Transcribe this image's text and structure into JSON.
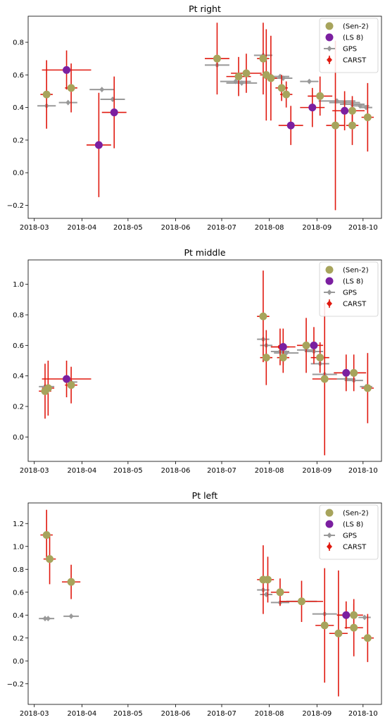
{
  "chart_data": [
    {
      "type": "scatter",
      "title": "Pt right",
      "xlabel": "",
      "ylabel": "",
      "xlim": [
        "2018-02-25",
        "2018-10-13"
      ],
      "ylim": [
        -0.28,
        0.96
      ],
      "xticks": [
        "2018-03",
        "2018-04",
        "2018-05",
        "2018-06",
        "2018-07",
        "2018-08",
        "2018-09",
        "2018-10"
      ],
      "yticks": [
        -0.2,
        0.0,
        0.2,
        0.4,
        0.6,
        0.8
      ],
      "ytick_labels": [
        "−0.2",
        "0.0",
        "0.2",
        "0.4",
        "0.6",
        "0.8"
      ],
      "legend": {
        "placement": "top-right",
        "entries": [
          "(Sen-2)",
          "(LS 8)",
          "GPS",
          "CARST"
        ]
      },
      "series": [
        {
          "name": "GPS",
          "color": "#999999",
          "points": [
            {
              "x": "2018-03-09",
              "y": 0.41,
              "xerr": 6
            },
            {
              "x": "2018-03-23",
              "y": 0.43,
              "xerr": 6
            },
            {
              "x": "2018-04-14",
              "y": 0.51,
              "xerr": 8
            },
            {
              "x": "2018-04-21",
              "y": 0.45,
              "xerr": 8
            },
            {
              "x": "2018-06-28",
              "y": 0.66,
              "xerr": 8
            },
            {
              "x": "2018-07-10",
              "y": 0.56,
              "xerr": 10
            },
            {
              "x": "2018-07-14",
              "y": 0.55,
              "xerr": 10
            },
            {
              "x": "2018-07-28",
              "y": 0.72,
              "xerr": 6
            },
            {
              "x": "2018-08-08",
              "y": 0.59,
              "xerr": 6
            },
            {
              "x": "2018-08-10",
              "y": 0.58,
              "xerr": 6
            },
            {
              "x": "2018-08-27",
              "y": 0.56,
              "xerr": 6
            },
            {
              "x": "2018-09-14",
              "y": 0.44,
              "xerr": 12
            },
            {
              "x": "2018-09-19",
              "y": 0.43,
              "xerr": 10
            },
            {
              "x": "2018-09-24",
              "y": 0.42,
              "xerr": 8
            },
            {
              "x": "2018-09-29",
              "y": 0.41,
              "xerr": 6
            },
            {
              "x": "2018-10-03",
              "y": 0.4,
              "xerr": 4
            }
          ]
        },
        {
          "name": "CARST",
          "color": "#e0190f",
          "points": [
            {
              "x": "2018-03-09",
              "y": 0.48,
              "xerr": 4,
              "yerr": 0.21
            },
            {
              "x": "2018-03-22",
              "y": 0.63,
              "xerr": 16,
              "yerr": 0.12
            },
            {
              "x": "2018-03-25",
              "y": 0.52,
              "xerr": 4,
              "yerr": 0.15
            },
            {
              "x": "2018-04-12",
              "y": 0.17,
              "xerr": 8,
              "yerr": 0.32
            },
            {
              "x": "2018-04-22",
              "y": 0.37,
              "xerr": 8,
              "yerr": 0.22
            },
            {
              "x": "2018-06-28",
              "y": 0.7,
              "xerr": 8,
              "yerr": 0.22
            },
            {
              "x": "2018-07-12",
              "y": 0.59,
              "xerr": 8,
              "yerr": 0.12
            },
            {
              "x": "2018-07-17",
              "y": 0.61,
              "xerr": 10,
              "yerr": 0.12
            },
            {
              "x": "2018-07-28",
              "y": 0.7,
              "xerr": 4,
              "yerr": 0.22
            },
            {
              "x": "2018-07-30",
              "y": 0.6,
              "xerr": 4,
              "yerr": 0.28
            },
            {
              "x": "2018-08-02",
              "y": 0.58,
              "xerr": 4,
              "yerr": 0.26
            },
            {
              "x": "2018-08-09",
              "y": 0.52,
              "xerr": 4,
              "yerr": 0.08
            },
            {
              "x": "2018-08-12",
              "y": 0.48,
              "xerr": 4,
              "yerr": 0.08
            },
            {
              "x": "2018-08-15",
              "y": 0.29,
              "xerr": 8,
              "yerr": 0.12
            },
            {
              "x": "2018-08-29",
              "y": 0.4,
              "xerr": 8,
              "yerr": 0.12
            },
            {
              "x": "2018-09-03",
              "y": 0.47,
              "xerr": 8,
              "yerr": 0.12
            },
            {
              "x": "2018-09-13",
              "y": 0.29,
              "xerr": 6,
              "yerr": 0.52
            },
            {
              "x": "2018-09-19",
              "y": 0.38,
              "xerr": 8,
              "yerr": 0.12
            },
            {
              "x": "2018-09-24",
              "y": 0.29,
              "xerr": 4,
              "yerr": 0.12
            },
            {
              "x": "2018-09-24",
              "y": 0.38,
              "xerr": 8,
              "yerr": 0.09
            },
            {
              "x": "2018-10-04",
              "y": 0.34,
              "xerr": 4,
              "yerr": 0.21
            }
          ]
        },
        {
          "name": "(Sen-2)",
          "color": "#a7a45c",
          "points": [
            {
              "x": "2018-03-09",
              "y": 0.48
            },
            {
              "x": "2018-03-25",
              "y": 0.52
            },
            {
              "x": "2018-06-28",
              "y": 0.7
            },
            {
              "x": "2018-07-12",
              "y": 0.59
            },
            {
              "x": "2018-07-17",
              "y": 0.61
            },
            {
              "x": "2018-07-28",
              "y": 0.7
            },
            {
              "x": "2018-07-30",
              "y": 0.6
            },
            {
              "x": "2018-08-02",
              "y": 0.58
            },
            {
              "x": "2018-08-09",
              "y": 0.52
            },
            {
              "x": "2018-08-12",
              "y": 0.48
            },
            {
              "x": "2018-09-03",
              "y": 0.47
            },
            {
              "x": "2018-09-13",
              "y": 0.29
            },
            {
              "x": "2018-09-24",
              "y": 0.29
            },
            {
              "x": "2018-09-24",
              "y": 0.38
            },
            {
              "x": "2018-10-04",
              "y": 0.34
            }
          ]
        },
        {
          "name": "(LS 8)",
          "color": "#7b1fa0",
          "points": [
            {
              "x": "2018-03-22",
              "y": 0.63
            },
            {
              "x": "2018-04-12",
              "y": 0.17
            },
            {
              "x": "2018-04-22",
              "y": 0.37
            },
            {
              "x": "2018-08-15",
              "y": 0.29
            },
            {
              "x": "2018-08-29",
              "y": 0.4
            },
            {
              "x": "2018-09-19",
              "y": 0.38
            }
          ]
        }
      ]
    },
    {
      "type": "scatter",
      "title": "Pt middle",
      "xlabel": "",
      "ylabel": "",
      "xlim": [
        "2018-02-25",
        "2018-10-13"
      ],
      "ylim": [
        -0.16,
        1.16
      ],
      "xticks": [
        "2018-03",
        "2018-04",
        "2018-05",
        "2018-06",
        "2018-07",
        "2018-08",
        "2018-09",
        "2018-10"
      ],
      "yticks": [
        0.0,
        0.2,
        0.4,
        0.6,
        0.8,
        1.0
      ],
      "ytick_labels": [
        "0.0",
        "0.2",
        "0.4",
        "0.6",
        "0.8",
        "1.0"
      ],
      "legend": {
        "placement": "top-right",
        "entries": [
          "(Sen-2)",
          "(LS 8)",
          "GPS",
          "CARST"
        ]
      },
      "series": [
        {
          "name": "GPS",
          "color": "#999999",
          "points": [
            {
              "x": "2018-03-08",
              "y": 0.33,
              "xerr": 4
            },
            {
              "x": "2018-03-10",
              "y": 0.33,
              "xerr": 4
            },
            {
              "x": "2018-03-25",
              "y": 0.36,
              "xerr": 4
            },
            {
              "x": "2018-07-28",
              "y": 0.64,
              "xerr": 4
            },
            {
              "x": "2018-07-30",
              "y": 0.6,
              "xerr": 4
            },
            {
              "x": "2018-08-08",
              "y": 0.56,
              "xerr": 6
            },
            {
              "x": "2018-08-12",
              "y": 0.55,
              "xerr": 8
            },
            {
              "x": "2018-08-25",
              "y": 0.57,
              "xerr": 6
            },
            {
              "x": "2018-08-30",
              "y": 0.56,
              "xerr": 6
            },
            {
              "x": "2018-09-03",
              "y": 0.48,
              "xerr": 6
            },
            {
              "x": "2018-09-06",
              "y": 0.41,
              "xerr": 8
            },
            {
              "x": "2018-09-20",
              "y": 0.38,
              "xerr": 6
            },
            {
              "x": "2018-09-25",
              "y": 0.37,
              "xerr": 6
            },
            {
              "x": "2018-10-03",
              "y": 0.33,
              "xerr": 4
            }
          ]
        },
        {
          "name": "CARST",
          "color": "#e0190f",
          "points": [
            {
              "x": "2018-03-08",
              "y": 0.3,
              "xerr": 4,
              "yerr": 0.18
            },
            {
              "x": "2018-03-10",
              "y": 0.32,
              "xerr": 4,
              "yerr": 0.18
            },
            {
              "x": "2018-03-22",
              "y": 0.38,
              "xerr": 16,
              "yerr": 0.12
            },
            {
              "x": "2018-03-25",
              "y": 0.34,
              "xerr": 4,
              "yerr": 0.12
            },
            {
              "x": "2018-07-28",
              "y": 0.79,
              "xerr": 4,
              "yerr": 0.3
            },
            {
              "x": "2018-07-30",
              "y": 0.52,
              "xerr": 4,
              "yerr": 0.18
            },
            {
              "x": "2018-08-08",
              "y": 0.59,
              "xerr": 6,
              "yerr": 0.12
            },
            {
              "x": "2018-08-10",
              "y": 0.59,
              "xerr": 8,
              "yerr": 0.12
            },
            {
              "x": "2018-08-10",
              "y": 0.52,
              "xerr": 4,
              "yerr": 0.1
            },
            {
              "x": "2018-08-25",
              "y": 0.6,
              "xerr": 6,
              "yerr": 0.18
            },
            {
              "x": "2018-08-30",
              "y": 0.6,
              "xerr": 6,
              "yerr": 0.12
            },
            {
              "x": "2018-09-03",
              "y": 0.52,
              "xerr": 6,
              "yerr": 0.1
            },
            {
              "x": "2018-09-06",
              "y": 0.38,
              "xerr": 8,
              "yerr": 0.5
            },
            {
              "x": "2018-09-20",
              "y": 0.42,
              "xerr": 8,
              "yerr": 0.12
            },
            {
              "x": "2018-09-25",
              "y": 0.42,
              "xerr": 8,
              "yerr": 0.12
            },
            {
              "x": "2018-10-04",
              "y": 0.32,
              "xerr": 4,
              "yerr": 0.23
            }
          ]
        },
        {
          "name": "(Sen-2)",
          "color": "#a7a45c",
          "points": [
            {
              "x": "2018-03-08",
              "y": 0.3
            },
            {
              "x": "2018-03-10",
              "y": 0.32
            },
            {
              "x": "2018-03-25",
              "y": 0.34
            },
            {
              "x": "2018-07-28",
              "y": 0.79
            },
            {
              "x": "2018-07-30",
              "y": 0.52
            },
            {
              "x": "2018-08-10",
              "y": 0.52
            },
            {
              "x": "2018-08-25",
              "y": 0.6
            },
            {
              "x": "2018-09-03",
              "y": 0.52
            },
            {
              "x": "2018-09-06",
              "y": 0.38
            },
            {
              "x": "2018-09-25",
              "y": 0.42
            },
            {
              "x": "2018-10-04",
              "y": 0.32
            }
          ]
        },
        {
          "name": "(LS 8)",
          "color": "#7b1fa0",
          "points": [
            {
              "x": "2018-03-22",
              "y": 0.38
            },
            {
              "x": "2018-08-10",
              "y": 0.59
            },
            {
              "x": "2018-08-30",
              "y": 0.6
            },
            {
              "x": "2018-09-20",
              "y": 0.42
            }
          ]
        }
      ]
    },
    {
      "type": "scatter",
      "title": "Pt left",
      "xlabel": "",
      "ylabel": "",
      "xlim": [
        "2018-02-25",
        "2018-10-13"
      ],
      "ylim": [
        -0.38,
        1.38
      ],
      "xticks": [
        "2018-03",
        "2018-04",
        "2018-05",
        "2018-06",
        "2018-07",
        "2018-08",
        "2018-09",
        "2018-10"
      ],
      "yticks": [
        -0.2,
        0.0,
        0.2,
        0.4,
        0.6,
        0.8,
        1.0,
        1.2
      ],
      "ytick_labels": [
        "−0.2",
        "0.0",
        "0.2",
        "0.4",
        "0.6",
        "0.8",
        "1.0",
        "1.2"
      ],
      "legend": {
        "placement": "top-right",
        "entries": [
          "(Sen-2)",
          "(LS 8)",
          "GPS",
          "CARST"
        ]
      },
      "series": [
        {
          "name": "GPS",
          "color": "#999999",
          "points": [
            {
              "x": "2018-03-08",
              "y": 0.37,
              "xerr": 4
            },
            {
              "x": "2018-03-10",
              "y": 0.37,
              "xerr": 4
            },
            {
              "x": "2018-03-25",
              "y": 0.39,
              "xerr": 5
            },
            {
              "x": "2018-07-28",
              "y": 0.62,
              "xerr": 4
            },
            {
              "x": "2018-07-30",
              "y": 0.58,
              "xerr": 4
            },
            {
              "x": "2018-08-08",
              "y": 0.51,
              "xerr": 6
            },
            {
              "x": "2018-08-22",
              "y": 0.52,
              "xerr": 10
            },
            {
              "x": "2018-09-06",
              "y": 0.41,
              "xerr": 8
            },
            {
              "x": "2018-09-20",
              "y": 0.4,
              "xerr": 6
            },
            {
              "x": "2018-10-02",
              "y": 0.38,
              "xerr": 4
            }
          ]
        },
        {
          "name": "CARST",
          "color": "#e0190f",
          "points": [
            {
              "x": "2018-03-09",
              "y": 1.1,
              "xerr": 4,
              "yerr": 0.22
            },
            {
              "x": "2018-03-11",
              "y": 0.89,
              "xerr": 4,
              "yerr": 0.22
            },
            {
              "x": "2018-03-25",
              "y": 0.69,
              "xerr": 6,
              "yerr": 0.15
            },
            {
              "x": "2018-07-28",
              "y": 0.71,
              "xerr": 4,
              "yerr": 0.3
            },
            {
              "x": "2018-07-31",
              "y": 0.71,
              "xerr": 4,
              "yerr": 0.2
            },
            {
              "x": "2018-08-08",
              "y": 0.6,
              "xerr": 6,
              "yerr": 0.12
            },
            {
              "x": "2018-08-22",
              "y": 0.52,
              "xerr": 14,
              "yerr": 0.18
            },
            {
              "x": "2018-09-06",
              "y": 0.31,
              "xerr": 6,
              "yerr": 0.5
            },
            {
              "x": "2018-09-15",
              "y": 0.24,
              "xerr": 6,
              "yerr": 0.55
            },
            {
              "x": "2018-09-20",
              "y": 0.4,
              "xerr": 6,
              "yerr": 0.12
            },
            {
              "x": "2018-09-25",
              "y": 0.29,
              "xerr": 6,
              "yerr": 0.25
            },
            {
              "x": "2018-09-25",
              "y": 0.4,
              "xerr": 6,
              "yerr": 0.1
            },
            {
              "x": "2018-10-04",
              "y": 0.2,
              "xerr": 4,
              "yerr": 0.21
            }
          ]
        },
        {
          "name": "(Sen-2)",
          "color": "#a7a45c",
          "points": [
            {
              "x": "2018-03-09",
              "y": 1.1
            },
            {
              "x": "2018-03-11",
              "y": 0.89
            },
            {
              "x": "2018-03-25",
              "y": 0.69
            },
            {
              "x": "2018-07-28",
              "y": 0.71
            },
            {
              "x": "2018-07-31",
              "y": 0.71
            },
            {
              "x": "2018-08-08",
              "y": 0.6
            },
            {
              "x": "2018-08-22",
              "y": 0.52
            },
            {
              "x": "2018-09-06",
              "y": 0.31
            },
            {
              "x": "2018-09-15",
              "y": 0.24
            },
            {
              "x": "2018-09-25",
              "y": 0.29
            },
            {
              "x": "2018-09-25",
              "y": 0.4
            },
            {
              "x": "2018-10-04",
              "y": 0.2
            }
          ]
        },
        {
          "name": "(LS 8)",
          "color": "#7b1fa0",
          "points": [
            {
              "x": "2018-09-20",
              "y": 0.4
            }
          ]
        }
      ]
    }
  ]
}
